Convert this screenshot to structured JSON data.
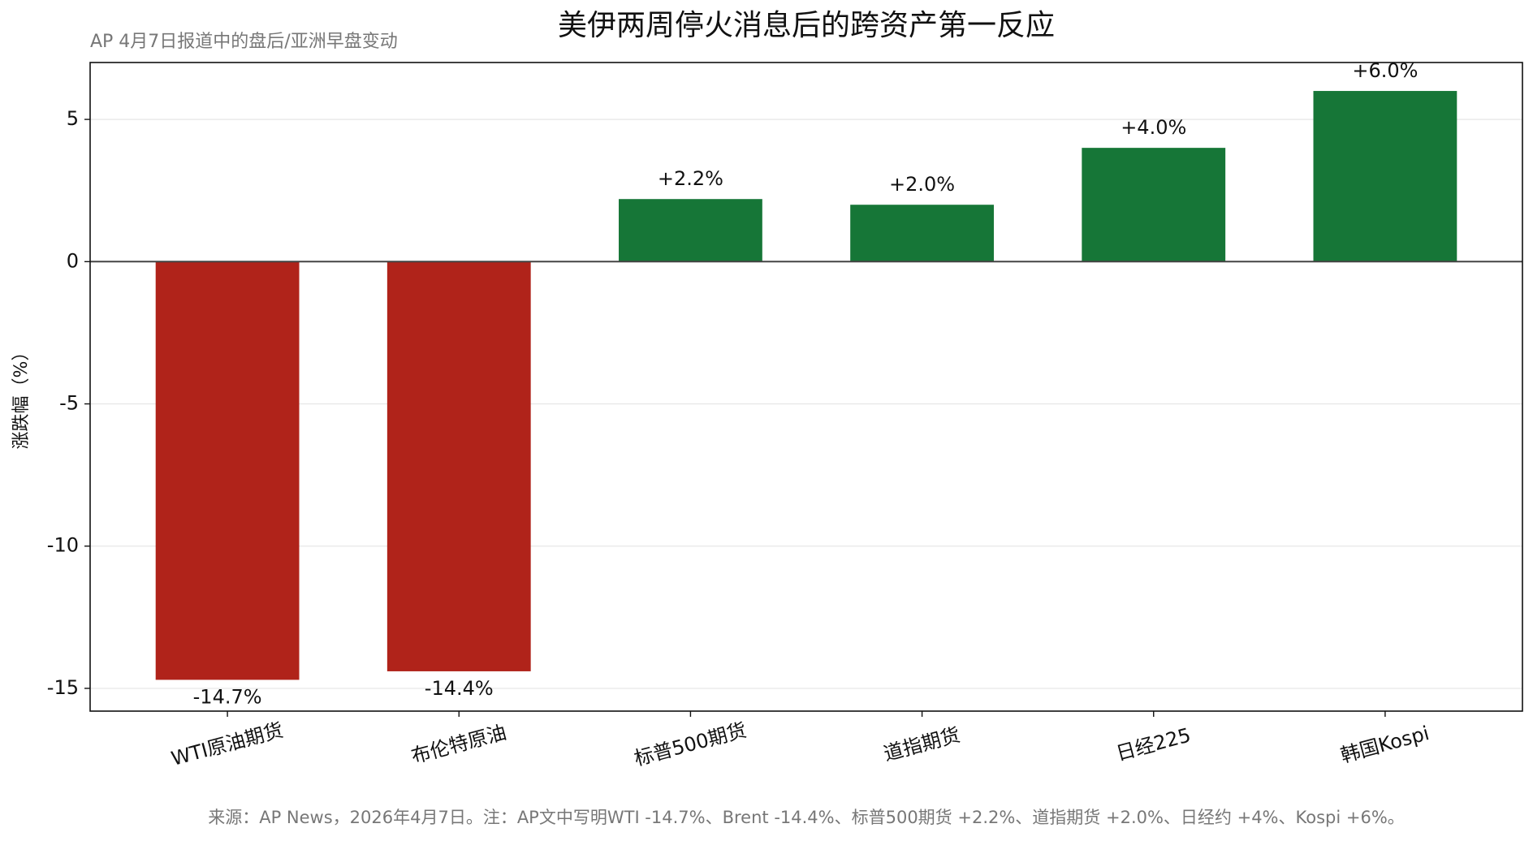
{
  "chart_data": {
    "type": "bar",
    "title": "美伊两周停火消息后的跨资产第一反应",
    "subtitle": "AP 4月7日报道中的盘后/亚洲早盘变动",
    "y_label": "涨跌幅（%）",
    "note": "来源：AP News，2026年4月7日。注：AP文中写明WTI -14.7%、Brent -14.4%、标普500期货 +2.2%、道指期货 +2.0%、日经约 +4%、Kospi +6%。",
    "categories": [
      "WTI原油期货",
      "布伦特原油",
      "标普500期货",
      "道指期货",
      "日经225",
      "韩国Kospi"
    ],
    "values": [
      -14.7,
      -14.4,
      2.2,
      2.0,
      4.0,
      6.0
    ],
    "value_labels": [
      "-14.7%",
      "-14.4%",
      "+2.2%",
      "+2.0%",
      "+4.0%",
      "+6.0%"
    ],
    "colors": [
      "#b0231a",
      "#b0231a",
      "#167637",
      "#167637",
      "#167637",
      "#167637"
    ],
    "ylim": [
      -15.8,
      7.0
    ],
    "yticks": [
      -15,
      -10,
      -5,
      0,
      5
    ],
    "grid": true
  }
}
